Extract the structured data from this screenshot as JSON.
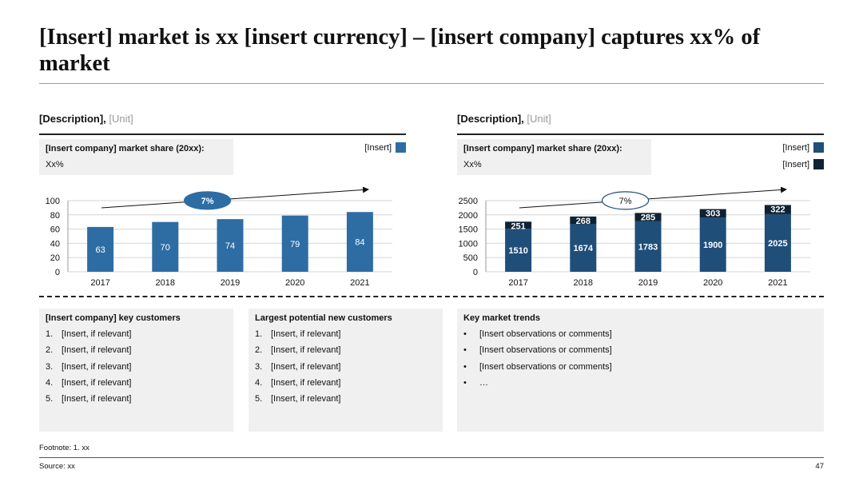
{
  "title": "[Insert] market is xx [insert currency] – [insert company] captures xx% of market",
  "left_panel": {
    "description": "[Description],",
    "unit": "[Unit]",
    "share_title": "[Insert company] market share (20xx):",
    "share_value": "Xx%",
    "legend": [
      {
        "label": "[Insert]",
        "color": "#2e6da4"
      }
    ],
    "cagr_label": "7%"
  },
  "right_panel": {
    "description": "[Description],",
    "unit": "[Unit]",
    "share_title": "[Insert company] market share (20xx):",
    "share_value": "Xx%",
    "legend": [
      {
        "label": "[Insert]",
        "color": "#1f4e79"
      },
      {
        "label": "[Insert]",
        "color": "#0f2233"
      }
    ],
    "cagr_label": "7%"
  },
  "chart_data": [
    {
      "type": "bar",
      "categories": [
        "2017",
        "2018",
        "2019",
        "2020",
        "2021"
      ],
      "series": [
        {
          "name": "[Insert]",
          "values": [
            63,
            70,
            74,
            79,
            84
          ],
          "color": "#2e6da4"
        }
      ],
      "ylim": [
        0,
        100
      ],
      "yticks": [
        0,
        20,
        40,
        60,
        80,
        100
      ],
      "annotations": [
        "7%"
      ],
      "grid": true
    },
    {
      "type": "bar",
      "stacked": true,
      "categories": [
        "2017",
        "2018",
        "2019",
        "2020",
        "2021"
      ],
      "series": [
        {
          "name": "[Insert]",
          "values": [
            1510,
            1674,
            1783,
            1900,
            2025
          ],
          "color": "#1f4e79"
        },
        {
          "name": "[Insert]",
          "values": [
            251,
            268,
            285,
            303,
            322
          ],
          "color": "#0f2233"
        }
      ],
      "ylim": [
        0,
        2500
      ],
      "yticks": [
        0,
        500,
        1000,
        1500,
        2000,
        2500
      ],
      "annotations": [
        "7%"
      ],
      "grid": true
    }
  ],
  "boxes": [
    {
      "title": "[Insert company] key customers",
      "markers": [
        "1.",
        "2.",
        "3.",
        "4.",
        "5."
      ],
      "items": [
        "[Insert, if relevant]",
        "[Insert, if relevant]",
        "[Insert, if relevant]",
        "[Insert, if relevant]",
        "[Insert, if relevant]"
      ]
    },
    {
      "title": "Largest potential new customers",
      "markers": [
        "1.",
        "2.",
        "3.",
        "4.",
        "5."
      ],
      "items": [
        "[Insert, if relevant]",
        "[Insert, if relevant]",
        "[Insert, if relevant]",
        "[Insert, if relevant]",
        "[Insert, if relevant]"
      ]
    },
    {
      "title": "Key market trends",
      "markers": [
        "•",
        "•",
        "•",
        "•"
      ],
      "items": [
        "[Insert observations or comments]",
        "[Insert observations or comments]",
        "[Insert observations or comments]",
        "…"
      ]
    }
  ],
  "footnote": "Footnote: 1. xx",
  "source": "Source: xx",
  "page_number": "47"
}
